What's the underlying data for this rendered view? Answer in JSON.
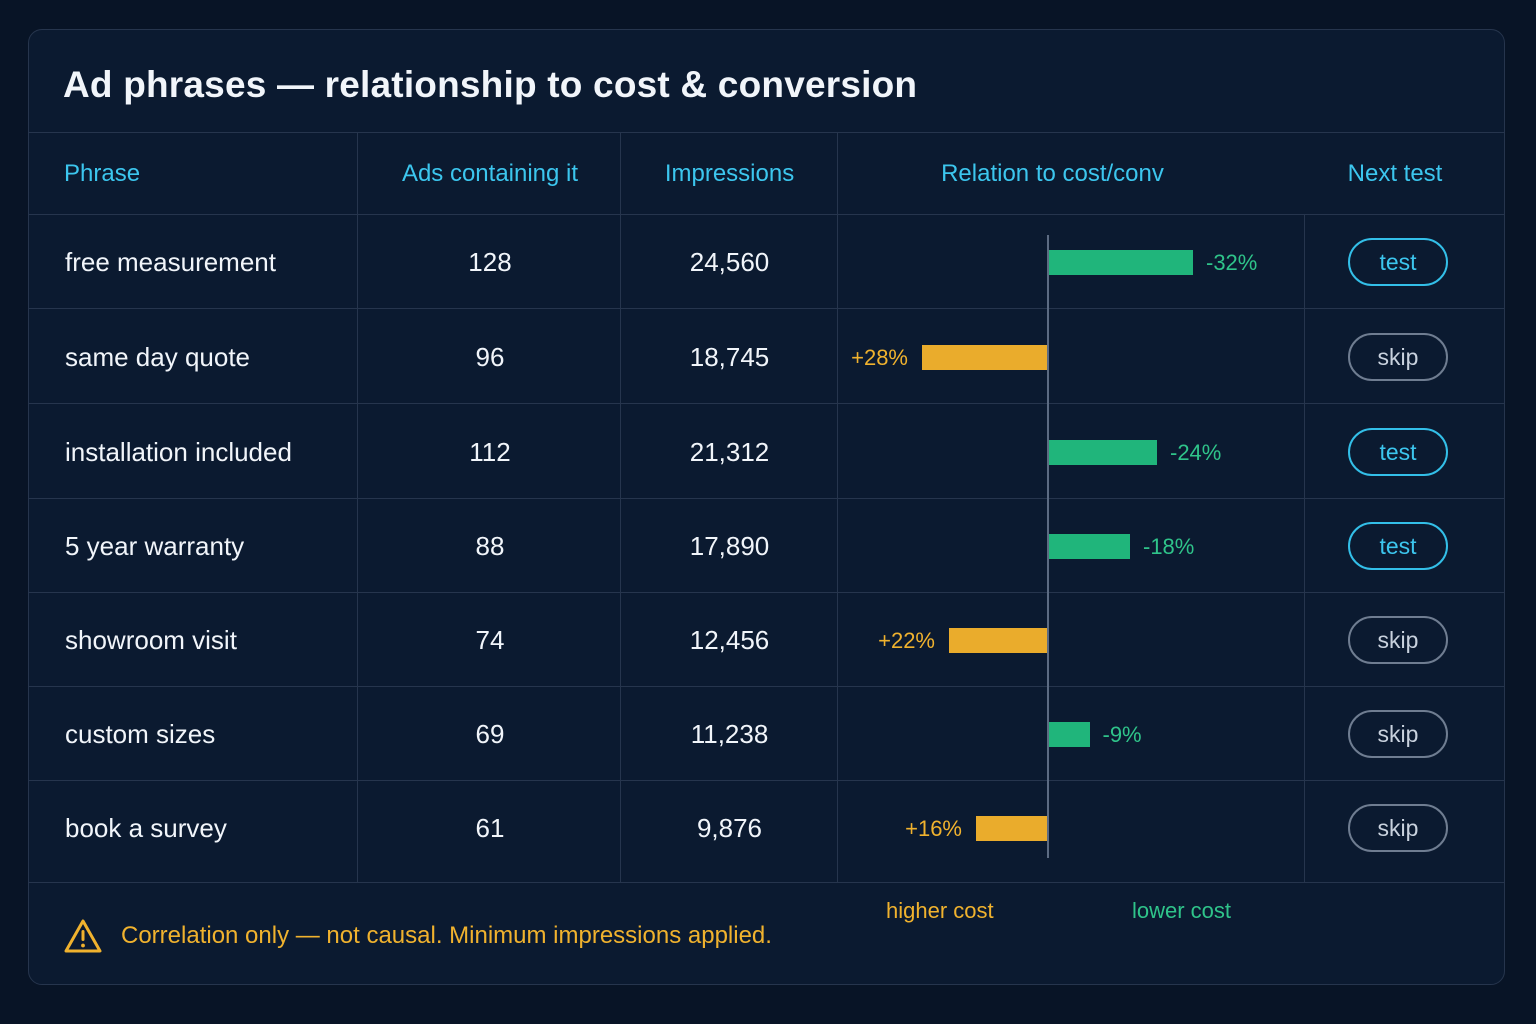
{
  "title": "Ad phrases — relationship to cost & conversion",
  "columns": {
    "phrase": "Phrase",
    "ads": "Ads containing it",
    "impressions": "Impressions",
    "relation": "Relation to cost/conv",
    "next_test": "Next test"
  },
  "rows": [
    {
      "phrase": "free measurement",
      "ads": "128",
      "impressions": "24,560",
      "relation": -32,
      "relation_label": "-32%",
      "next_test": "test"
    },
    {
      "phrase": "same day quote",
      "ads": "96",
      "impressions": "18,745",
      "relation": 28,
      "relation_label": "+28%",
      "next_test": "skip"
    },
    {
      "phrase": "installation included",
      "ads": "112",
      "impressions": "21,312",
      "relation": -24,
      "relation_label": "-24%",
      "next_test": "test"
    },
    {
      "phrase": "5 year warranty",
      "ads": "88",
      "impressions": "17,890",
      "relation": -18,
      "relation_label": "-18%",
      "next_test": "test"
    },
    {
      "phrase": "showroom visit",
      "ads": "74",
      "impressions": "12,456",
      "relation": 22,
      "relation_label": "+22%",
      "next_test": "skip"
    },
    {
      "phrase": "custom sizes",
      "ads": "69",
      "impressions": "11,238",
      "relation": -9,
      "relation_label": "-9%",
      "next_test": "skip"
    },
    {
      "phrase": "book a survey",
      "ads": "61",
      "impressions": "9,876",
      "relation": 16,
      "relation_label": "+16%",
      "next_test": "skip"
    }
  ],
  "legend": {
    "higher": "higher cost",
    "lower": "lower cost"
  },
  "footer": {
    "note": "Correlation only — not causal. Minimum impressions applied.",
    "icon": "warning-icon"
  },
  "colors": {
    "accent": "#3cc6ee",
    "lower_cost": "#20b57b",
    "higher_cost": "#eaac2c",
    "background": "#0b1a30"
  }
}
